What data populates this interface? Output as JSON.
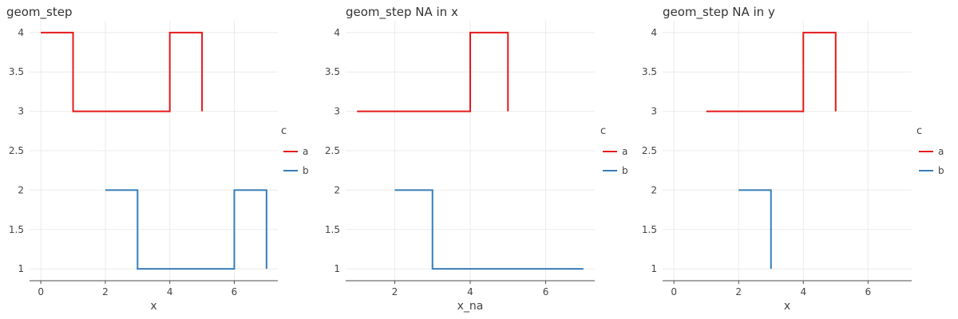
{
  "chart_data": [
    {
      "type": "line",
      "subtype": "step",
      "title": "geom_step",
      "xlabel": "x",
      "ylabel": "",
      "xlim": [
        -0.35,
        7.35
      ],
      "ylim": [
        0.85,
        4.15
      ],
      "xticks": [
        "0",
        "2",
        "4",
        "6"
      ],
      "xtick_values": [
        0,
        2,
        4,
        6
      ],
      "yticks": [
        "1",
        "1.5",
        "2",
        "2.5",
        "3",
        "3.5",
        "4"
      ],
      "ytick_values": [
        1,
        1.5,
        2,
        2.5,
        3,
        3.5,
        4
      ],
      "legend_title": "c",
      "legend_position": "right",
      "series": [
        {
          "name": "a",
          "color": "#e41a1c",
          "points": [
            [
              0,
              4
            ],
            [
              1,
              3
            ],
            [
              2,
              3
            ],
            [
              3,
              3
            ],
            [
              4,
              4
            ],
            [
              5,
              3
            ]
          ]
        },
        {
          "name": "b",
          "color": "#377eb8",
          "points": [
            [
              2,
              2
            ],
            [
              3,
              1
            ],
            [
              4,
              1
            ],
            [
              5,
              1
            ],
            [
              6,
              2
            ],
            [
              7,
              1
            ]
          ]
        }
      ]
    },
    {
      "type": "line",
      "subtype": "step",
      "title": "geom_step NA in x",
      "xlabel": "x_na",
      "ylabel": "",
      "xlim": [
        0.7,
        7.3
      ],
      "ylim": [
        0.85,
        4.15
      ],
      "xticks": [
        "2",
        "4",
        "6"
      ],
      "xtick_values": [
        2,
        4,
        6
      ],
      "yticks": [
        "1",
        "1.5",
        "2",
        "2.5",
        "3",
        "3.5",
        "4"
      ],
      "ytick_values": [
        1,
        1.5,
        2,
        2.5,
        3,
        3.5,
        4
      ],
      "legend_title": "c",
      "legend_position": "right",
      "series": [
        {
          "name": "a",
          "color": "#e41a1c",
          "points": [
            [
              1,
              3
            ],
            [
              2,
              3
            ],
            [
              3,
              3
            ],
            [
              4,
              4
            ],
            [
              5,
              3
            ]
          ]
        },
        {
          "name": "b",
          "color": "#377eb8",
          "points": [
            [
              2,
              2
            ],
            [
              3,
              1
            ],
            [
              4,
              1
            ],
            [
              5,
              1
            ],
            [
              6,
              1
            ],
            [
              7,
              1
            ]
          ]
        }
      ]
    },
    {
      "type": "line",
      "subtype": "step",
      "title": "geom_step NA in y",
      "xlabel": "x",
      "ylabel": "",
      "xlim": [
        -0.35,
        7.35
      ],
      "ylim": [
        0.85,
        4.15
      ],
      "xticks": [
        "0",
        "2",
        "4",
        "6"
      ],
      "xtick_values": [
        0,
        2,
        4,
        6
      ],
      "yticks": [
        "1",
        "1.5",
        "2",
        "2.5",
        "3",
        "3.5",
        "4"
      ],
      "ytick_values": [
        1,
        1.5,
        2,
        2.5,
        3,
        3.5,
        4
      ],
      "legend_title": "c",
      "legend_position": "right",
      "series": [
        {
          "name": "a",
          "color": "#e41a1c",
          "points": [
            [
              1,
              3
            ],
            [
              2,
              3
            ],
            [
              3,
              3
            ],
            [
              4,
              4
            ],
            [
              5,
              3
            ]
          ]
        },
        {
          "name": "b",
          "color": "#377eb8",
          "points": [
            [
              2,
              2
            ],
            [
              3,
              1
            ]
          ]
        }
      ]
    }
  ]
}
